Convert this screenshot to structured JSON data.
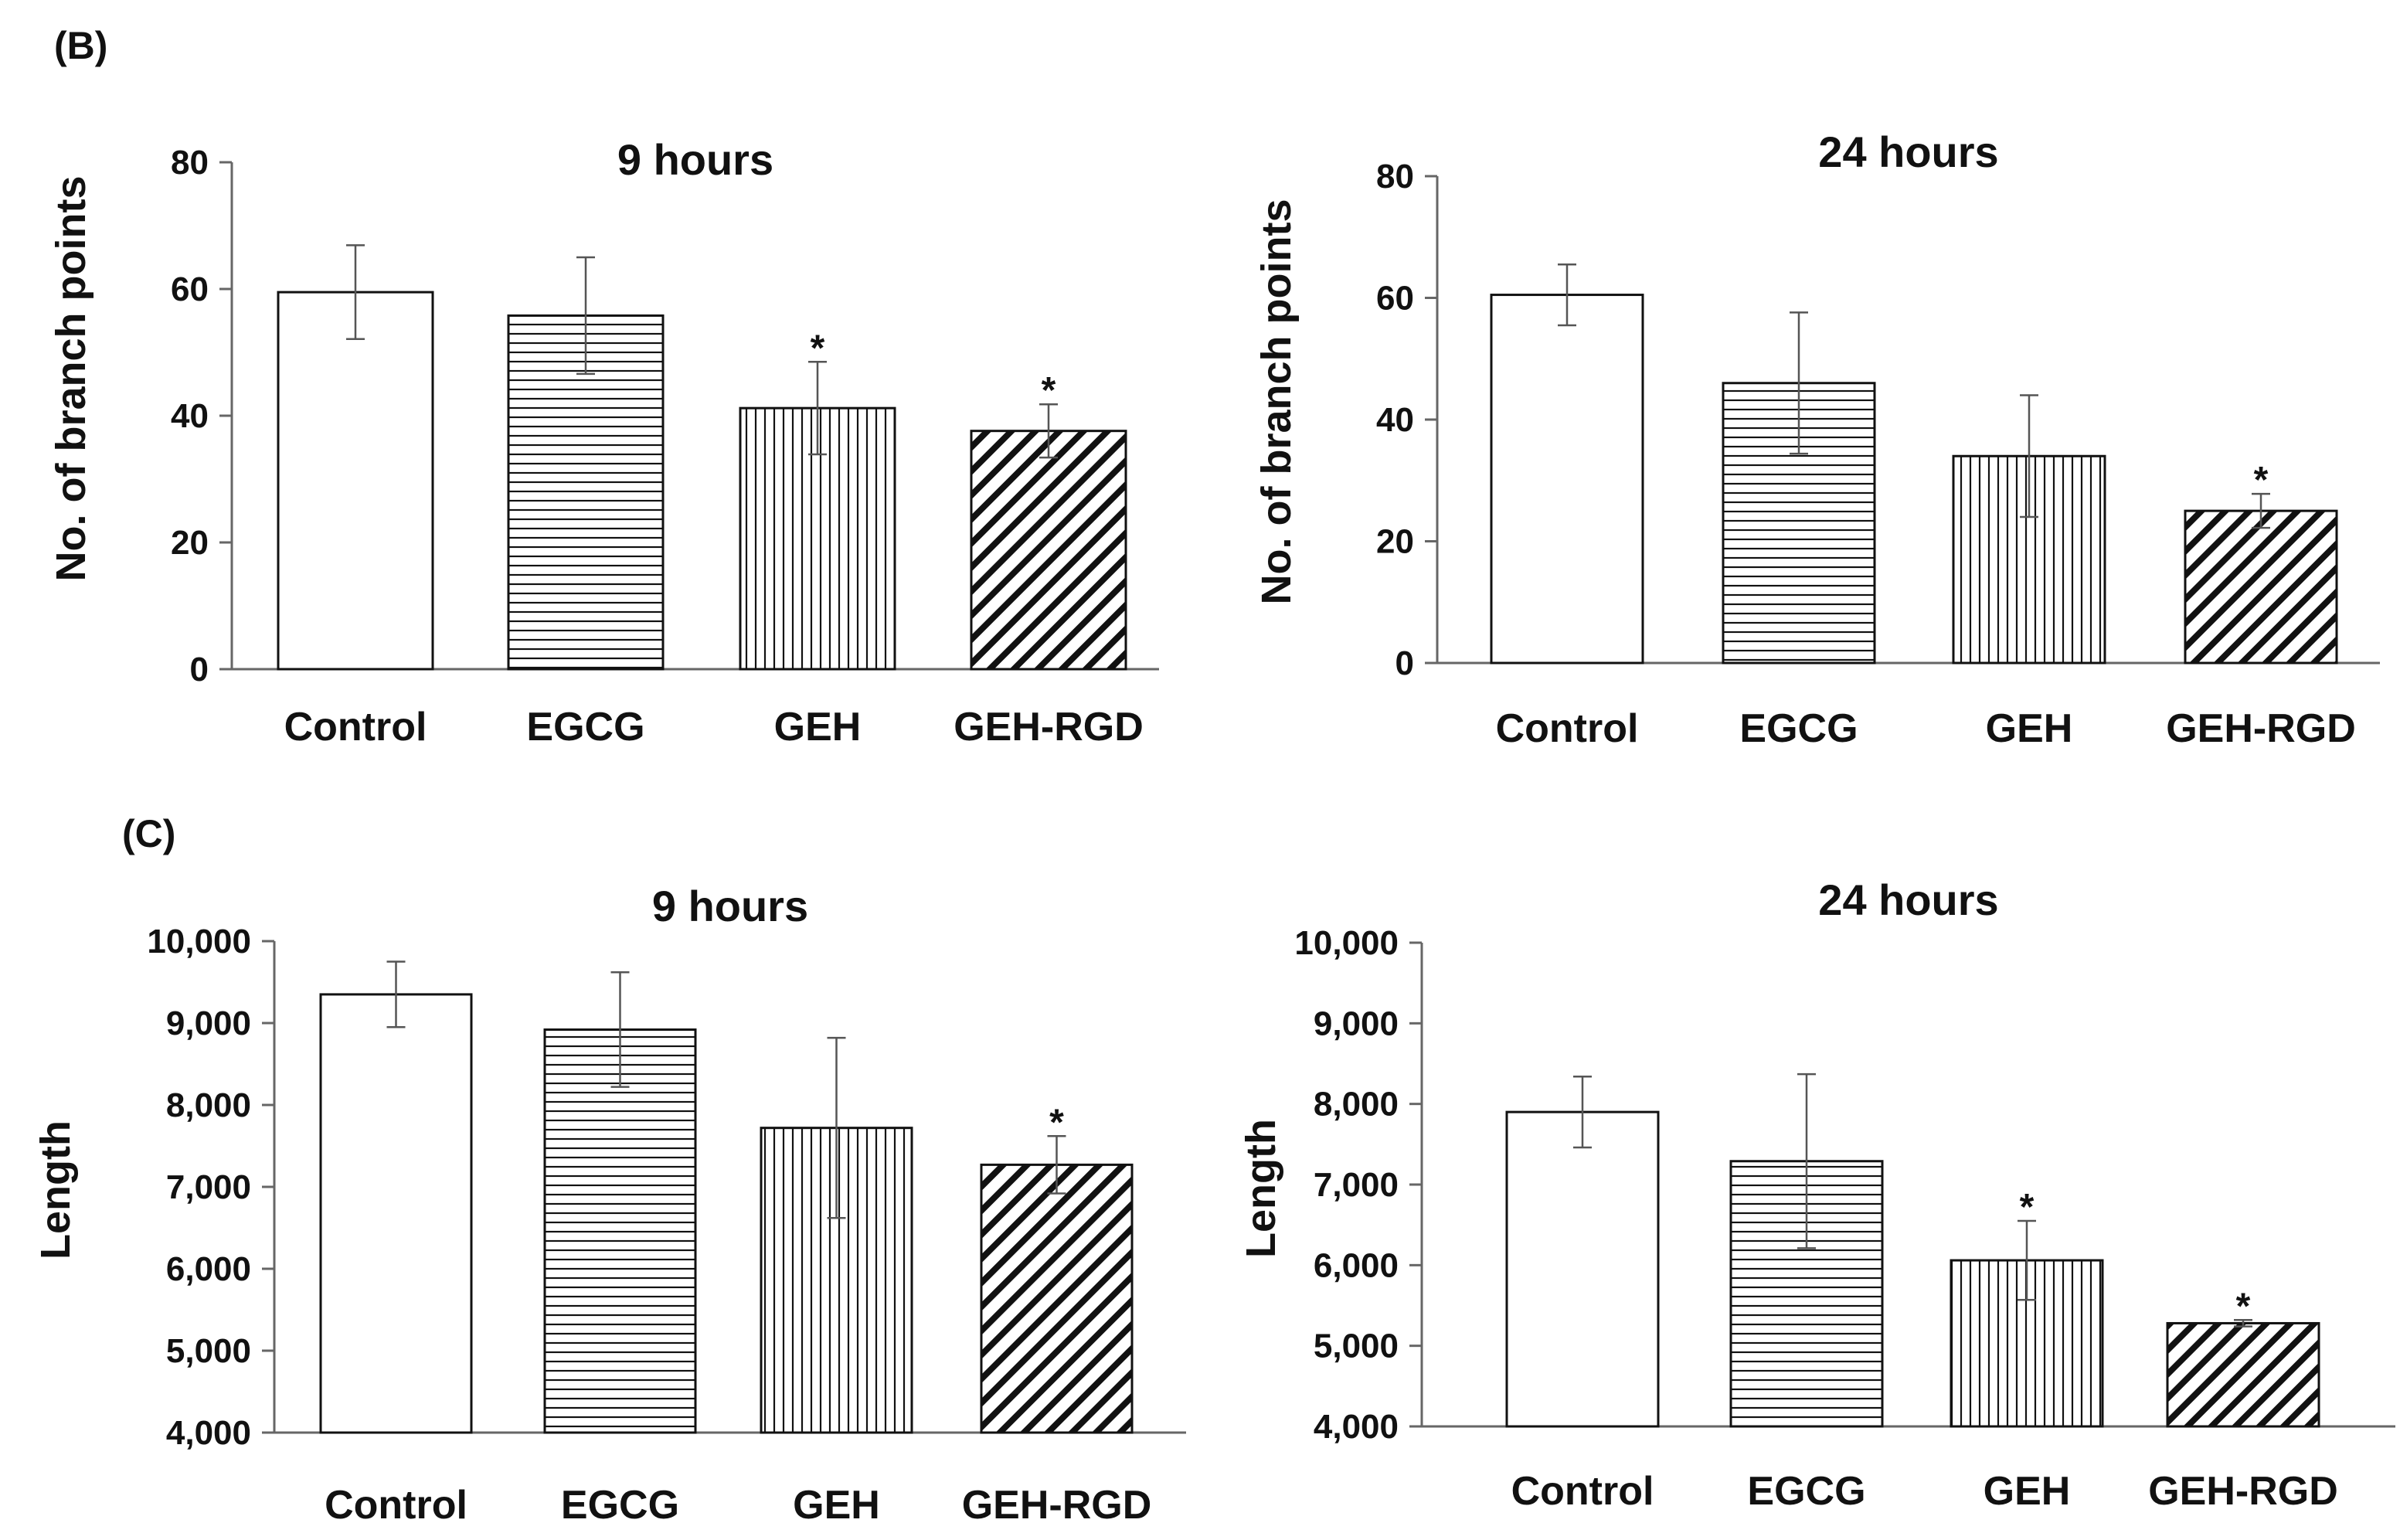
{
  "figure": {
    "panel_b_label": "(B)",
    "panel_c_label": "(C)"
  },
  "colors": {
    "bar_fill": "#ffffff",
    "bar_stroke": "#111111",
    "axis": "#666666"
  },
  "chart_data": [
    {
      "id": "b9",
      "type": "bar",
      "title": "9 hours",
      "xlabel": "",
      "ylabel": "No. of branch points",
      "categories": [
        "Control",
        "EGCG",
        "GEH",
        "GEH-RGD"
      ],
      "patterns": [
        "none",
        "horizontal",
        "vertical",
        "diagonal"
      ],
      "values": [
        59.5,
        55.8,
        41.2,
        37.6
      ],
      "errors": [
        7.4,
        9.2,
        7.3,
        4.2
      ],
      "significant": [
        false,
        false,
        true,
        true
      ],
      "ylim": [
        0,
        80
      ],
      "yticks": [
        0,
        20,
        40,
        60,
        80
      ],
      "ytick_labels": [
        "0",
        "20",
        "40",
        "60",
        "80"
      ],
      "star": "*"
    },
    {
      "id": "b24",
      "type": "bar",
      "title": "24 hours",
      "xlabel": "",
      "ylabel": "No. of branch points",
      "categories": [
        "Control",
        "EGCG",
        "GEH",
        "GEH-RGD"
      ],
      "patterns": [
        "none",
        "horizontal",
        "vertical",
        "diagonal"
      ],
      "values": [
        60.5,
        46.0,
        34.0,
        25.0
      ],
      "errors": [
        5.0,
        11.6,
        10.0,
        2.8
      ],
      "significant": [
        false,
        false,
        false,
        true
      ],
      "ylim": [
        0,
        80
      ],
      "yticks": [
        0,
        20,
        40,
        60,
        80
      ],
      "ytick_labels": [
        "0",
        "20",
        "40",
        "60",
        "80"
      ],
      "star": "*"
    },
    {
      "id": "c9",
      "type": "bar",
      "title": "9 hours",
      "xlabel": "",
      "ylabel": "Length",
      "categories": [
        "Control",
        "EGCG",
        "GEH",
        "GEH-RGD"
      ],
      "patterns": [
        "none",
        "horizontal",
        "vertical",
        "diagonal"
      ],
      "values": [
        9350,
        8920,
        7720,
        7270
      ],
      "errors": [
        400,
        700,
        1100,
        350
      ],
      "significant": [
        false,
        false,
        false,
        true
      ],
      "ylim": [
        4000,
        10000
      ],
      "yticks": [
        4000,
        5000,
        6000,
        7000,
        8000,
        9000,
        10000
      ],
      "ytick_labels": [
        "4,000",
        "5,000",
        "6,000",
        "7,000",
        "8,000",
        "9,000",
        "10,000"
      ],
      "star": "*"
    },
    {
      "id": "c24",
      "type": "bar",
      "title": "24 hours",
      "xlabel": "",
      "ylabel": "Length",
      "categories": [
        "Control",
        "EGCG",
        "GEH",
        "GEH-RGD"
      ],
      "patterns": [
        "none",
        "horizontal",
        "vertical",
        "diagonal"
      ],
      "values": [
        7900,
        7290,
        6060,
        5280
      ],
      "errors": [
        440,
        1080,
        490,
        40
      ],
      "significant": [
        false,
        false,
        true,
        true
      ],
      "ylim": [
        4000,
        10000
      ],
      "yticks": [
        4000,
        5000,
        6000,
        7000,
        8000,
        9000,
        10000
      ],
      "ytick_labels": [
        "4,000",
        "5,000",
        "6,000",
        "7,000",
        "8,000",
        "9,000",
        "10,000"
      ],
      "star": "*"
    }
  ]
}
